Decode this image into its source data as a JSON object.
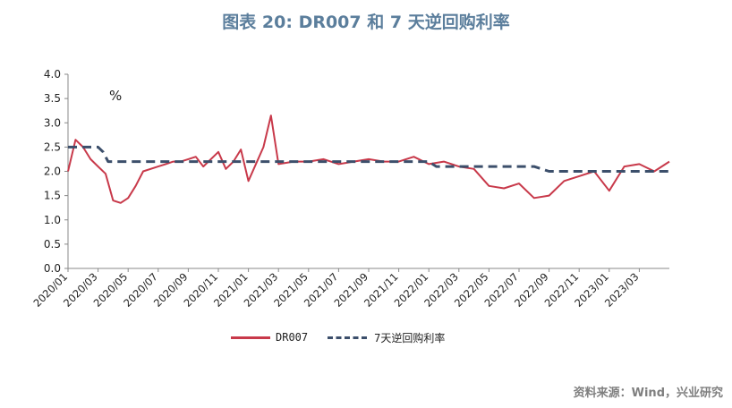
{
  "header": {
    "title": "图表 20: DR007 和 7 天逆回购利率"
  },
  "source": "资料来源：Wind，兴业研究",
  "colors": {
    "dr007": "#c8394a",
    "repo": "#3c4f6b",
    "title": "#5b7e9c"
  },
  "chart_data": {
    "type": "line",
    "unit_label": "%",
    "ylim": [
      0,
      4
    ],
    "y_ticks": [
      "0.0",
      "0.5",
      "1.0",
      "1.5",
      "2.0",
      "2.5",
      "3.0",
      "3.5",
      "4.0"
    ],
    "x_range": [
      "2020/01",
      "2023/05"
    ],
    "x_ticks": [
      "2020/01",
      "2020/03",
      "2020/05",
      "2020/07",
      "2020/09",
      "2020/11",
      "2021/01",
      "2021/03",
      "2021/05",
      "2021/07",
      "2021/09",
      "2021/11",
      "2022/01",
      "2022/03",
      "2022/05",
      "2022/07",
      "2022/09",
      "2022/11",
      "2023/01",
      "2023/03"
    ],
    "grid": false,
    "legend_position": "bottom",
    "series": [
      {
        "name": "DR007",
        "style": "solid",
        "x": [
          "2020/01",
          "2020/01",
          "2020/02",
          "2020/02",
          "2020/03",
          "2020/03",
          "2020/04",
          "2020/04",
          "2020/05",
          "2020/05",
          "2020/06",
          "2020/07",
          "2020/07",
          "2020/08",
          "2020/08",
          "2020/09",
          "2020/09",
          "2020/10",
          "2020/11",
          "2020/11",
          "2020/12",
          "2020/12",
          "2021/01",
          "2021/02",
          "2021/02",
          "2021/03",
          "2021/04",
          "2021/05",
          "2021/06",
          "2021/07",
          "2021/08",
          "2021/09",
          "2021/10",
          "2021/11",
          "2021/12",
          "2022/01",
          "2022/02",
          "2022/03",
          "2022/04",
          "2022/05",
          "2022/06",
          "2022/07",
          "2022/08",
          "2022/09",
          "2022/10",
          "2022/11",
          "2022/12",
          "2023/01",
          "2023/02",
          "2023/03",
          "2023/04",
          "2023/05"
        ],
        "values": [
          2.0,
          2.65,
          2.5,
          2.25,
          2.1,
          1.95,
          1.4,
          1.35,
          1.45,
          1.7,
          2.0,
          2.1,
          2.15,
          2.2,
          2.2,
          2.25,
          2.3,
          2.1,
          2.4,
          2.05,
          2.2,
          2.45,
          1.8,
          2.5,
          3.15,
          2.15,
          2.2,
          2.2,
          2.25,
          2.15,
          2.2,
          2.25,
          2.2,
          2.2,
          2.3,
          2.15,
          2.2,
          2.1,
          2.05,
          1.7,
          1.65,
          1.75,
          1.45,
          1.5,
          1.8,
          1.9,
          2.0,
          1.6,
          2.1,
          2.15,
          2.0,
          2.2
        ]
      },
      {
        "name": "7天逆回购利率",
        "style": "dashed",
        "x": [
          "2020/01",
          "2020/03",
          "2020/03",
          "2020/03",
          "2020/05",
          "2021/12",
          "2022/01",
          "2022/01",
          "2022/08",
          "2022/09",
          "2023/05"
        ],
        "values": [
          2.5,
          2.5,
          2.4,
          2.2,
          2.2,
          2.2,
          2.2,
          2.1,
          2.1,
          2.0,
          2.0
        ]
      }
    ]
  }
}
